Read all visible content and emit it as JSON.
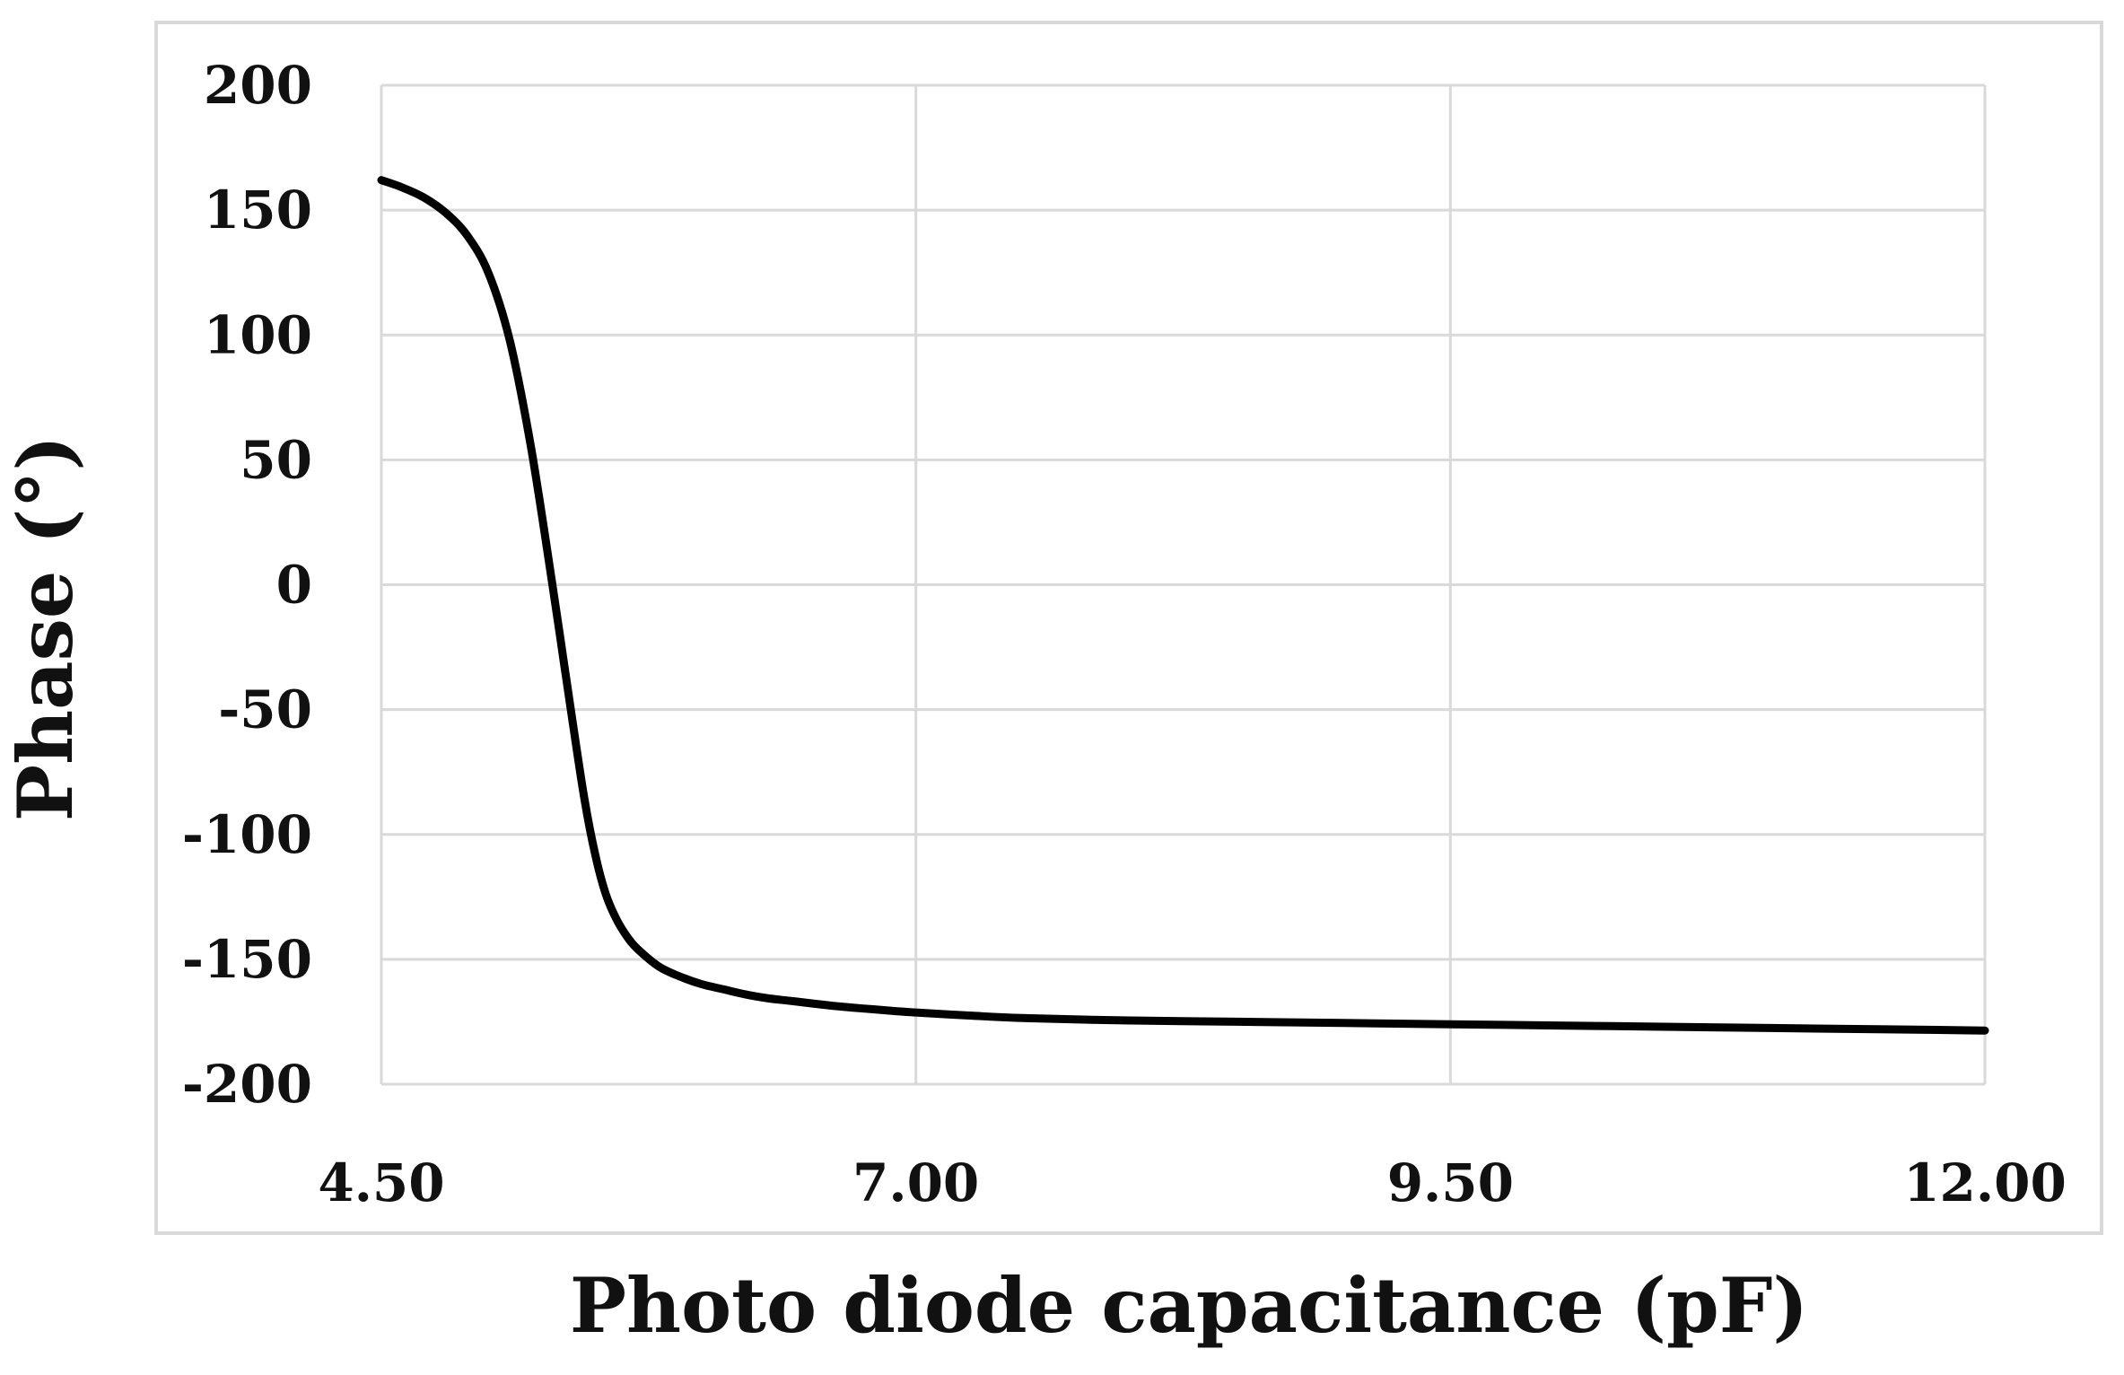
{
  "chart_data": {
    "type": "line",
    "title": "",
    "xlabel": "Photo diode capacitance (pF)",
    "ylabel": "Phase (°)",
    "xlim": [
      4.5,
      12.0
    ],
    "ylim": [
      -200,
      200
    ],
    "x_ticks": [
      4.5,
      7.0,
      9.5,
      12.0
    ],
    "x_tick_labels": [
      "4.50",
      "7.00",
      "9.50",
      "12.00"
    ],
    "y_ticks": [
      200,
      150,
      100,
      50,
      0,
      -50,
      -100,
      -150,
      -200
    ],
    "y_tick_labels": [
      "200",
      "150",
      "100",
      "50",
      "0",
      "-50",
      "-100",
      "-150",
      "-200"
    ],
    "grid": true,
    "legend": "none",
    "series": [
      {
        "color": "#000000",
        "x": [
          4.5,
          4.6,
          4.7,
          4.8,
          4.9,
          5.0,
          5.1,
          5.2,
          5.3,
          5.35,
          5.4,
          5.45,
          5.5,
          5.55,
          5.6,
          5.65,
          5.7,
          5.8,
          5.9,
          6.0,
          6.1,
          6.2,
          6.3,
          6.4,
          6.5,
          6.6,
          6.7,
          6.8,
          6.9,
          7.0,
          7.25,
          7.5,
          8.0,
          8.5,
          9.0,
          9.5,
          10.0,
          10.5,
          11.0,
          11.5,
          12.0
        ],
        "y": [
          162,
          159,
          155,
          149,
          140,
          125,
          98,
          55,
          0,
          -29,
          -58,
          -86,
          -108,
          -124,
          -134,
          -141,
          -146,
          -153,
          -157,
          -160,
          -162,
          -164,
          -165.5,
          -166.5,
          -167.5,
          -168.5,
          -169.3,
          -170,
          -170.7,
          -171.3,
          -172.5,
          -173.5,
          -174.5,
          -175,
          -175.5,
          -176,
          -176.5,
          -177,
          -177.5,
          -178,
          -178.5
        ]
      }
    ]
  },
  "colors": {
    "line": "#000000",
    "grid": "#d9d9d9",
    "frame": "#d9d9d9",
    "text": "#111111"
  }
}
